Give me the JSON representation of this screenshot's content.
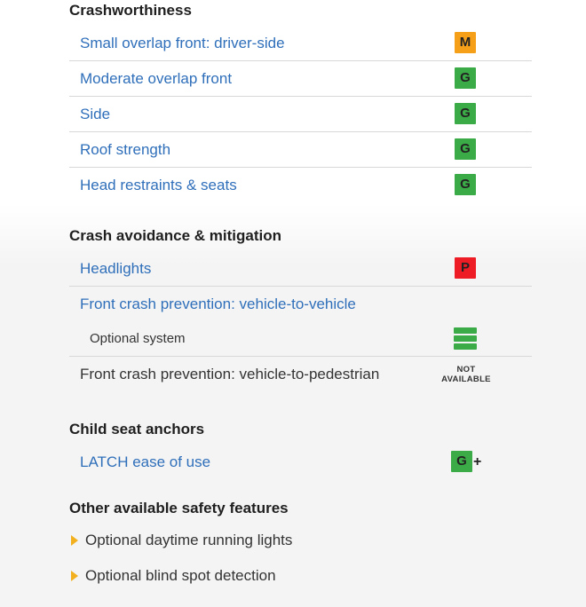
{
  "crashworthiness": {
    "title": "Crashworthiness",
    "rows": [
      {
        "label": "Small overlap front: driver-side",
        "rating": "M"
      },
      {
        "label": "Moderate overlap front",
        "rating": "G"
      },
      {
        "label": "Side",
        "rating": "G"
      },
      {
        "label": "Roof strength",
        "rating": "G"
      },
      {
        "label": "Head restraints & seats",
        "rating": "G"
      }
    ]
  },
  "avoidance": {
    "title": "Crash avoidance & mitigation",
    "headlights": {
      "label": "Headlights",
      "rating": "P"
    },
    "front_vehicle": {
      "label": "Front crash prevention: vehicle-to-vehicle"
    },
    "optional_system": {
      "label": "Optional system",
      "rating_icon": "superior-bars-icon"
    },
    "front_pedestrian": {
      "label": "Front crash prevention: vehicle-to-pedestrian",
      "status_line1": "NOT",
      "status_line2": "AVAILABLE"
    }
  },
  "child_seat": {
    "title": "Child seat anchors",
    "latch": {
      "label": "LATCH ease of use",
      "rating": "G",
      "suffix": "+"
    }
  },
  "other": {
    "title": "Other available safety features",
    "items": [
      "Optional daytime running lights",
      "Optional blind spot detection"
    ]
  },
  "colors": {
    "good": "#3bab47",
    "marginal": "#f6a01a",
    "poor": "#ee1c25",
    "link": "#2f6fba",
    "bullet": "#f2b01e"
  }
}
